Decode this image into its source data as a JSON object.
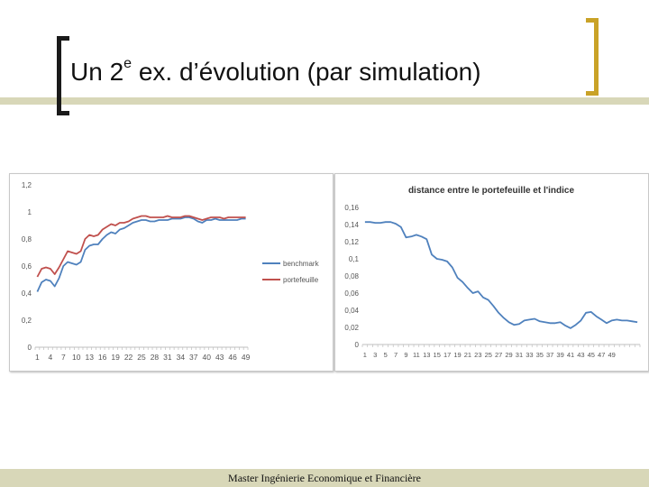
{
  "slide": {
    "title_main": "Un 2",
    "title_sup": "e",
    "title_rest": " ex. d’évolution (par simulation)",
    "footer": "Master Ingénierie Economique et Financière"
  },
  "colors": {
    "benchmark": "#4f81bd",
    "portefeuille": "#c0504d",
    "distance": "#4f81bd",
    "accent": "#c9a227",
    "band": "#d8d7b8"
  },
  "chart_data": [
    {
      "type": "line",
      "title": "",
      "xlabel": "",
      "ylabel": "",
      "x_tick_labels": [
        "1",
        "4",
        "7",
        "10",
        "13",
        "16",
        "19",
        "22",
        "25",
        "28",
        "31",
        "34",
        "37",
        "40",
        "43",
        "46",
        "49"
      ],
      "y_tick_labels": [
        "0",
        "0,2",
        "0,4",
        "0,6",
        "0,8",
        "1",
        "1,2"
      ],
      "ylim": [
        0,
        1.2
      ],
      "legend_position": "right",
      "series": [
        {
          "name": "benchmark",
          "values": [
            0.41,
            0.48,
            0.5,
            0.49,
            0.45,
            0.51,
            0.6,
            0.63,
            0.62,
            0.61,
            0.63,
            0.72,
            0.75,
            0.76,
            0.76,
            0.8,
            0.83,
            0.85,
            0.84,
            0.87,
            0.88,
            0.9,
            0.92,
            0.93,
            0.94,
            0.94,
            0.93,
            0.93,
            0.94,
            0.94,
            0.94,
            0.95,
            0.95,
            0.95,
            0.96,
            0.96,
            0.95,
            0.93,
            0.92,
            0.94,
            0.94,
            0.95,
            0.94,
            0.94,
            0.94,
            0.94,
            0.94,
            0.95,
            0.95
          ]
        },
        {
          "name": "portefeuille",
          "values": [
            0.52,
            0.58,
            0.59,
            0.58,
            0.54,
            0.59,
            0.65,
            0.71,
            0.7,
            0.69,
            0.71,
            0.8,
            0.83,
            0.82,
            0.83,
            0.87,
            0.89,
            0.91,
            0.9,
            0.92,
            0.92,
            0.93,
            0.95,
            0.96,
            0.97,
            0.97,
            0.96,
            0.96,
            0.96,
            0.96,
            0.97,
            0.96,
            0.96,
            0.96,
            0.97,
            0.97,
            0.96,
            0.95,
            0.94,
            0.95,
            0.96,
            0.96,
            0.96,
            0.95,
            0.96,
            0.96,
            0.96,
            0.96,
            0.96
          ]
        }
      ]
    },
    {
      "type": "line",
      "title": "distance entre le portefeuille et l'indice",
      "xlabel": "",
      "ylabel": "",
      "x_tick_labels": [
        "1",
        "3",
        "5",
        "7",
        "9",
        "11",
        "13",
        "15",
        "17",
        "19",
        "21",
        "23",
        "25",
        "27",
        "29",
        "31",
        "33",
        "35",
        "37",
        "39",
        "41",
        "43",
        "45",
        "47",
        "49"
      ],
      "y_tick_labels": [
        "0",
        "0,02",
        "0,04",
        "0,06",
        "0,08",
        "0,1",
        "0,12",
        "0,14",
        "0,16"
      ],
      "ylim": [
        0,
        0.16
      ],
      "series": [
        {
          "name": "",
          "values": [
            0.143,
            0.143,
            0.142,
            0.142,
            0.143,
            0.143,
            0.141,
            0.137,
            0.125,
            0.126,
            0.128,
            0.126,
            0.123,
            0.105,
            0.1,
            0.099,
            0.097,
            0.09,
            0.078,
            0.073,
            0.066,
            0.06,
            0.062,
            0.055,
            0.052,
            0.045,
            0.037,
            0.031,
            0.026,
            0.023,
            0.024,
            0.028,
            0.029,
            0.03,
            0.027,
            0.026,
            0.025,
            0.025,
            0.026,
            0.022,
            0.019,
            0.023,
            0.028,
            0.037,
            0.038,
            0.033,
            0.029,
            0.025,
            0.028,
            0.029,
            0.028,
            0.028,
            0.027,
            0.026
          ]
        }
      ]
    }
  ]
}
